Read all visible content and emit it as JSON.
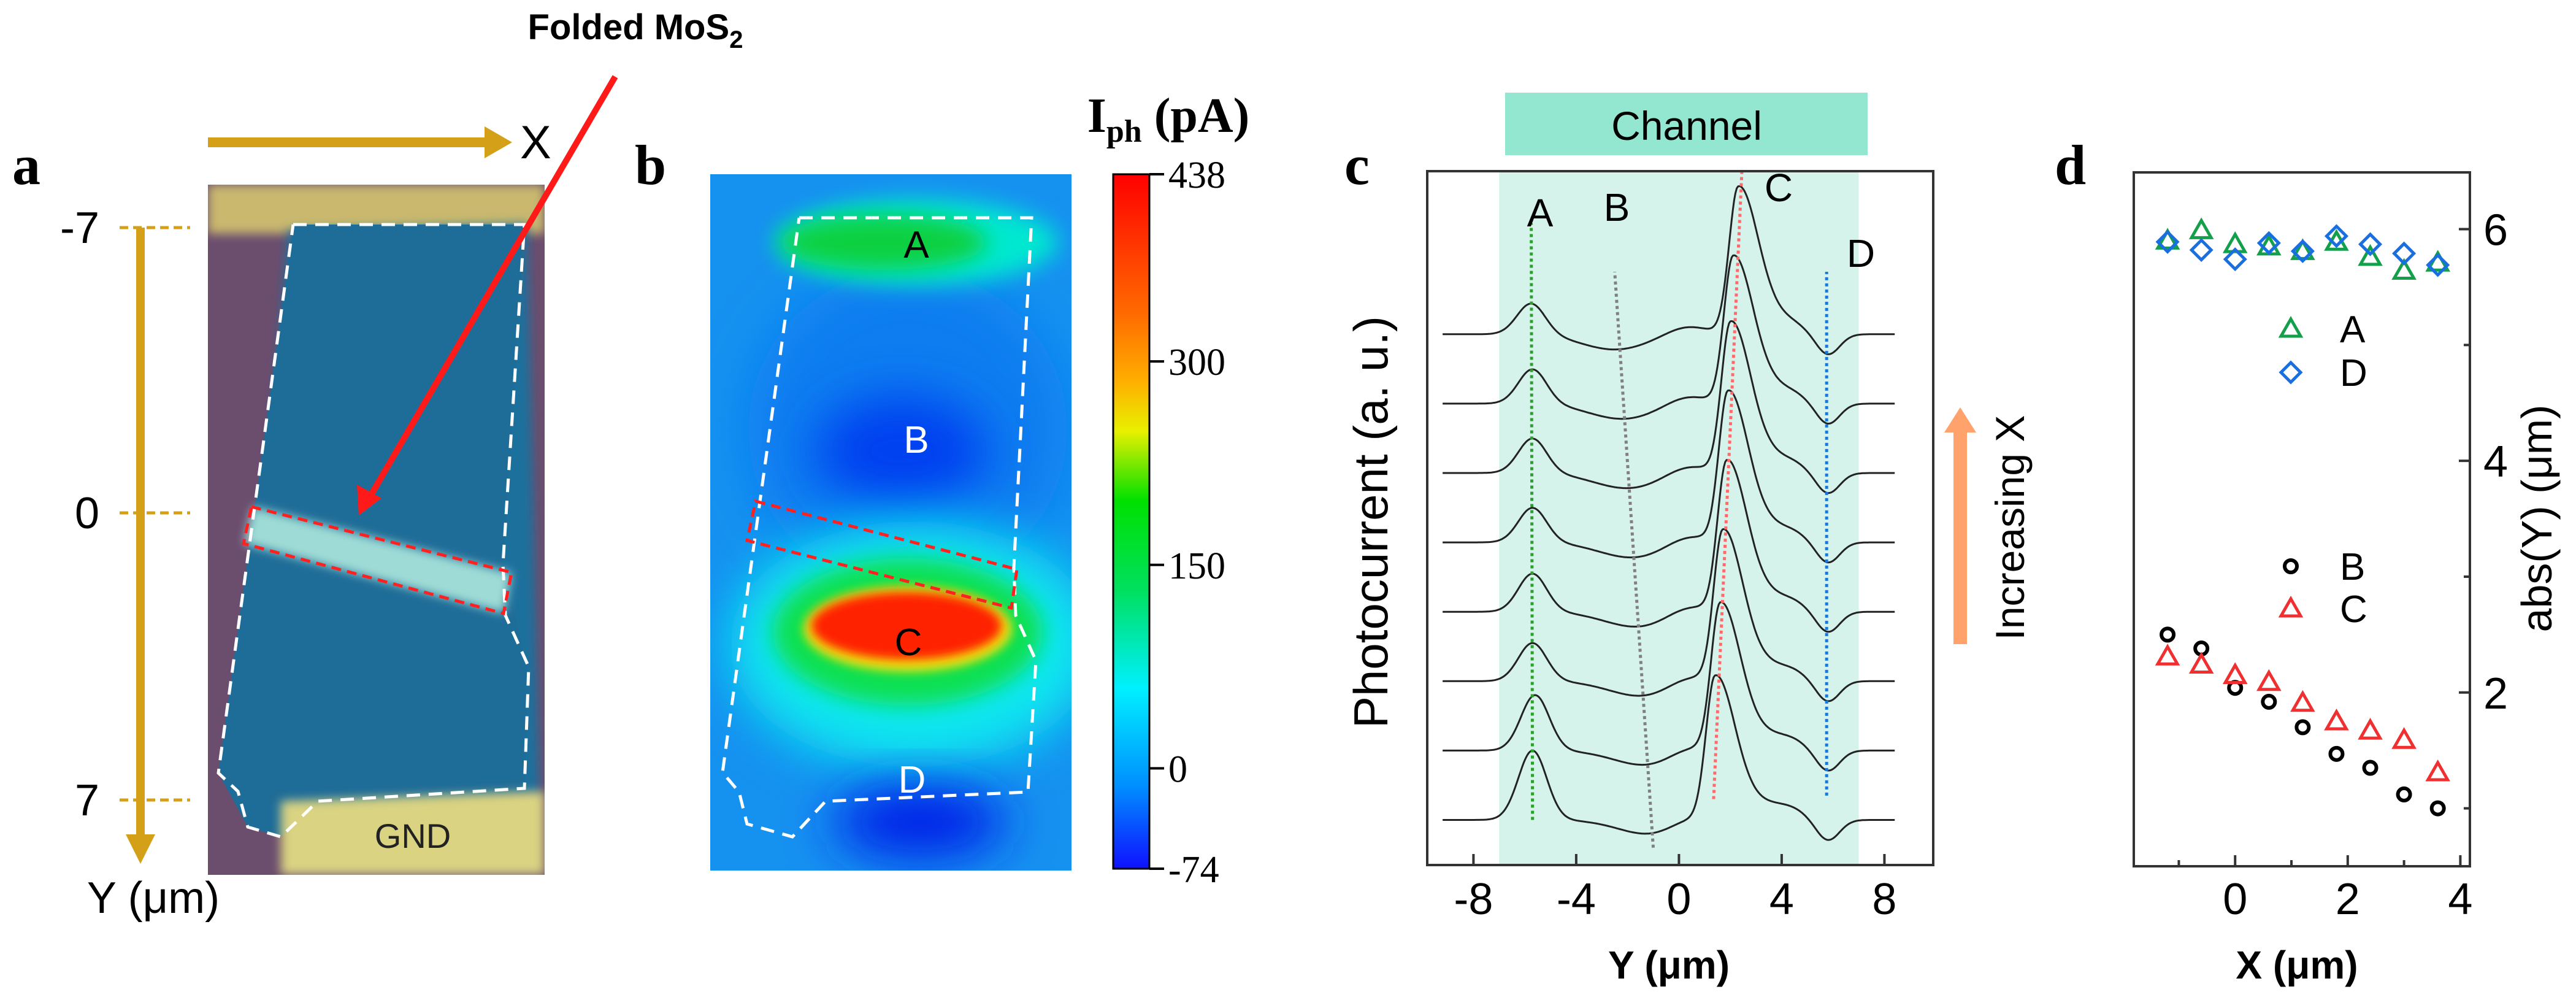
{
  "panel_a": {
    "letter": "a",
    "annotation": "Folded MoS",
    "annotation_sub": "2",
    "x_axis_label": "X",
    "y_axis_label": "Y (μm)",
    "y_ticks": [
      "-7",
      "0",
      "7"
    ],
    "electrode_label": "GND",
    "colors": {
      "arrow": "#d4a017",
      "pointer": "#ff1a1a",
      "flake": "#1f6f9c",
      "substrate": "#6b4d6e",
      "electrode": "#d9d382",
      "fold": "#9fdbd6"
    }
  },
  "panel_b": {
    "letter": "b",
    "colorbar_title": "I",
    "colorbar_title_sub": "ph",
    "colorbar_unit": " (pA)",
    "colorbar_ticks": [
      "438",
      "300",
      "150",
      "0",
      "-74"
    ],
    "colorbar_values": [
      438,
      300,
      150,
      0,
      -74
    ],
    "region_labels": [
      "A",
      "B",
      "C",
      "D"
    ]
  },
  "panel_c": {
    "letter": "c",
    "banner": "Channel",
    "arrow_label": "Increasing X",
    "arrow_color": "#ffa26b",
    "shade_color": "#d5f3ea",
    "banner_color": "#93e6cf"
  },
  "chart_data": [
    {
      "panel": "c",
      "type": "line",
      "xlabel": "Y (μm)",
      "ylabel": "Photocurrent (a. u.)",
      "xlim": [
        -9.8,
        9.9
      ],
      "ylim": [
        -0.65,
        9.35
      ],
      "xticks": [
        -8,
        -4,
        0,
        4,
        8
      ],
      "channel_range": [
        -7,
        7
      ],
      "grid": false,
      "trace_x_range": [
        -9.2,
        8.4
      ],
      "peak_labels": [
        "A",
        "B",
        "C",
        "D"
      ],
      "guide_lines": [
        {
          "name": "A",
          "color": "#2ca02c",
          "from": [
            -5.7,
            0
          ],
          "to": [
            -5.75,
            8.6
          ]
        },
        {
          "name": "B",
          "color": "#808080",
          "from": [
            -1.0,
            -0.4
          ],
          "to": [
            -2.5,
            7.9
          ]
        },
        {
          "name": "C",
          "color": "#ff6b6b",
          "from": [
            1.35,
            0.3
          ],
          "to": [
            2.45,
            9.35
          ]
        },
        {
          "name": "D",
          "color": "#1f77d4",
          "from": [
            5.75,
            0.35
          ],
          "to": [
            5.75,
            7.9
          ]
        }
      ],
      "traces": [
        {
          "offset": 0,
          "A_pos": -5.7,
          "A_amp": 1.0,
          "B_pos": -1.0,
          "C_pos": 1.4,
          "C_amp": 1.95,
          "D_pos": 5.8
        },
        {
          "offset": 1,
          "A_pos": -5.6,
          "A_amp": 0.8,
          "B_pos": -1.2,
          "C_pos": 1.6,
          "C_amp": 2.0,
          "D_pos": 5.8
        },
        {
          "offset": 2,
          "A_pos": -5.7,
          "A_amp": 0.55,
          "B_pos": -1.4,
          "C_pos": 1.7,
          "C_amp": 2.05,
          "D_pos": 5.8
        },
        {
          "offset": 3,
          "A_pos": -5.7,
          "A_amp": 0.55,
          "B_pos": -1.6,
          "C_pos": 1.85,
          "C_amp": 2.05,
          "D_pos": 5.8
        },
        {
          "offset": 4,
          "A_pos": -5.7,
          "A_amp": 0.5,
          "B_pos": -1.8,
          "C_pos": 1.9,
          "C_amp": 2.05,
          "D_pos": 5.8
        },
        {
          "offset": 5,
          "A_pos": -5.7,
          "A_amp": 0.5,
          "B_pos": -2.0,
          "C_pos": 2.0,
          "C_amp": 2.05,
          "D_pos": 5.8
        },
        {
          "offset": 6,
          "A_pos": -5.7,
          "A_amp": 0.5,
          "B_pos": -2.2,
          "C_pos": 2.1,
          "C_amp": 2.0,
          "D_pos": 5.8
        },
        {
          "offset": 7,
          "A_pos": -5.75,
          "A_amp": 0.45,
          "B_pos": -2.5,
          "C_pos": 2.3,
          "C_amp": 2.0,
          "D_pos": 5.8
        }
      ]
    },
    {
      "panel": "d",
      "type": "scatter",
      "xlabel": "X (μm)",
      "ylabel": "abs(Y) (μm)",
      "xlim": [
        -1.8,
        4.17
      ],
      "ylim": [
        0.5,
        6.49
      ],
      "xticks": [
        0,
        2,
        4
      ],
      "yticks": [
        2,
        4,
        6
      ],
      "y_axis_side": "right",
      "legend_placement": "center",
      "grid": false,
      "x": [
        -1.2,
        -0.6,
        0,
        0.6,
        1.2,
        1.8,
        2.4,
        3.0,
        3.6
      ],
      "series": [
        {
          "name": "A",
          "marker": "triangle",
          "color": "#14a04a",
          "values": [
            5.9,
            5.99,
            5.87,
            5.85,
            5.81,
            5.89,
            5.76,
            5.64,
            5.71
          ]
        },
        {
          "name": "D",
          "marker": "diamond",
          "color": "#1a6fe0",
          "values": [
            5.89,
            5.82,
            5.74,
            5.88,
            5.81,
            5.94,
            5.87,
            5.79,
            5.69
          ]
        },
        {
          "name": "B",
          "marker": "circle",
          "color": "#000000",
          "values": [
            2.5,
            2.38,
            2.04,
            1.92,
            1.7,
            1.47,
            1.35,
            1.12,
            1.0
          ]
        },
        {
          "name": "C",
          "marker": "triangle",
          "color": "#f03030",
          "values": [
            2.31,
            2.24,
            2.15,
            2.09,
            1.91,
            1.75,
            1.67,
            1.59,
            1.31
          ]
        }
      ]
    }
  ]
}
